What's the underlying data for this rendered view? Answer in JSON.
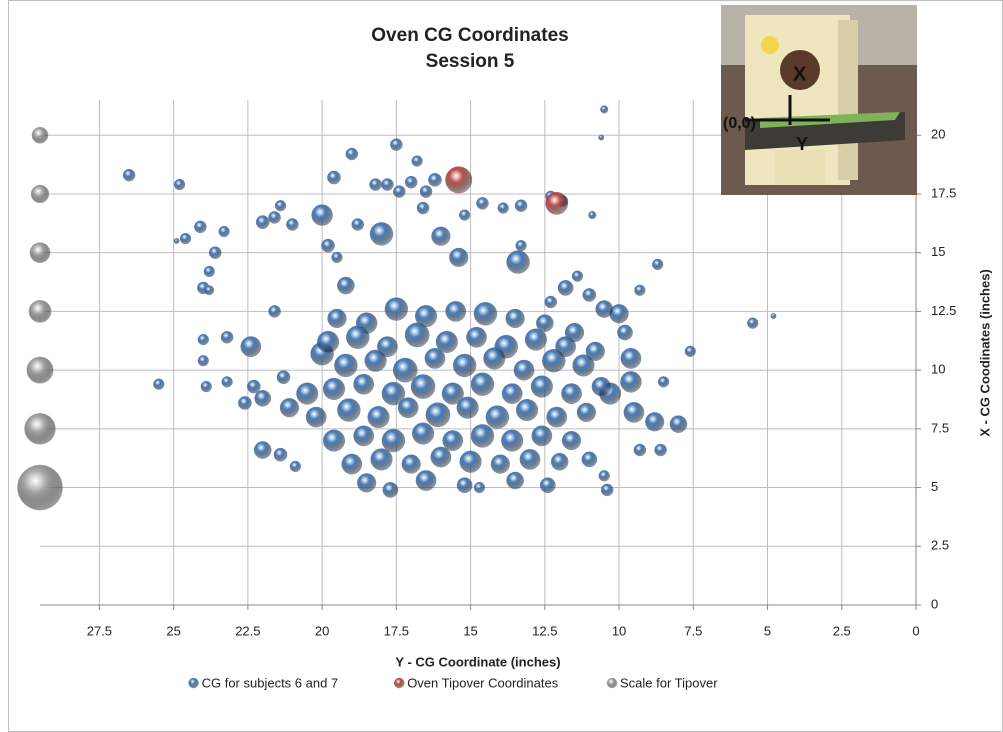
{
  "chart_data": {
    "type": "bubble",
    "title": "Oven CG Coordinates",
    "subtitle": "Session 5",
    "x_label": "Y - CG Coordinate (inches)",
    "y_label": "X - CG Coodinates (inches)",
    "xlim": [
      29.5,
      0
    ],
    "xticks": [
      27.5,
      25,
      22.5,
      20,
      17.5,
      15,
      12.5,
      10,
      7.5,
      5,
      2.5,
      0
    ],
    "ylim": [
      0,
      21.5
    ],
    "yticks": [
      0,
      2.5,
      5,
      7.5,
      10,
      12.5,
      15,
      17.5,
      20
    ],
    "grid": true,
    "legend": "bottom",
    "annotations": [
      "X",
      "(0,0)",
      "Y"
    ],
    "series": [
      {
        "name": "CG for subjects 6 and 7",
        "color": "#4a7ebb",
        "x": [
          26.5,
          24.8,
          24.6,
          24.9,
          24.1,
          23.3,
          23.6,
          23.8,
          24.0,
          23.8,
          22.0,
          21.6,
          21.0,
          21.4,
          20.0,
          19.8,
          19.5,
          19.0,
          19.6,
          18.8,
          17.5,
          16.8,
          16.2,
          16.5,
          18.2,
          17.8,
          17.4,
          17.0,
          16.6,
          15.2,
          14.6,
          13.9,
          13.3,
          12.3,
          11.9,
          10.9,
          10.5,
          10.6,
          18.0,
          16.0,
          13.3,
          13.4,
          15.4,
          19.2,
          21.6,
          24.0,
          24.0,
          23.2,
          22.4,
          25.5,
          23.9,
          23.2,
          22.3,
          21.3,
          22.6,
          22.0,
          21.1,
          22.0,
          21.4,
          20.9,
          8.7,
          9.3,
          11.4,
          11.0,
          11.8,
          12.3,
          5.5,
          4.8,
          7.6,
          8.5,
          9.3,
          8.6,
          10.4,
          10.5,
          8.0,
          8.8,
          9.5,
          10.0,
          10.5,
          9.8,
          9.6,
          9.6,
          10.3,
          20.0,
          20.5,
          19.5,
          18.5,
          17.5,
          16.5,
          15.5,
          14.5,
          13.5,
          12.5,
          11.5,
          19.8,
          18.8,
          17.8,
          16.8,
          15.8,
          14.8,
          13.8,
          12.8,
          11.8,
          10.8,
          19.2,
          18.2,
          17.2,
          16.2,
          15.2,
          14.2,
          13.2,
          12.2,
          11.2,
          19.6,
          18.6,
          17.6,
          16.6,
          15.6,
          14.6,
          13.6,
          12.6,
          11.6,
          10.6,
          20.2,
          19.1,
          18.1,
          17.1,
          16.1,
          15.1,
          14.1,
          13.1,
          12.1,
          11.1,
          19.6,
          18.6,
          17.6,
          16.6,
          15.6,
          14.6,
          13.6,
          12.6,
          11.6,
          19.0,
          18.0,
          17.0,
          16.0,
          15.0,
          14.0,
          13.0,
          12.0,
          11.0,
          18.5,
          17.7,
          16.5,
          15.2,
          14.7,
          13.5,
          12.4
        ],
        "values": [
          18.3,
          17.9,
          15.6,
          15.5,
          16.1,
          15.9,
          15.0,
          14.2,
          13.5,
          13.4,
          16.3,
          16.5,
          16.2,
          17.0,
          16.6,
          15.3,
          14.8,
          19.2,
          18.2,
          16.2,
          19.6,
          18.9,
          18.1,
          17.6,
          17.9,
          17.9,
          17.6,
          18.0,
          16.9,
          16.6,
          17.1,
          16.9,
          17.0,
          17.4,
          17.2,
          16.6,
          21.1,
          19.9,
          15.8,
          15.7,
          15.3,
          14.6,
          14.8,
          13.6,
          12.5,
          11.3,
          10.4,
          11.4,
          11.0,
          9.4,
          9.3,
          9.5,
          9.3,
          9.7,
          8.6,
          8.8,
          8.4,
          6.6,
          6.4,
          5.9,
          14.5,
          13.4,
          14.0,
          13.2,
          13.5,
          12.9,
          12.0,
          12.3,
          10.8,
          9.5,
          6.6,
          6.6,
          4.9,
          5.5,
          7.7,
          7.8,
          8.2,
          12.4,
          12.6,
          11.6,
          10.5,
          9.5,
          9.0,
          10.7,
          9.0,
          12.2,
          12.0,
          12.6,
          12.3,
          12.5,
          12.4,
          12.2,
          12.0,
          11.6,
          11.2,
          11.4,
          11.0,
          11.5,
          11.2,
          11.4,
          11.0,
          11.3,
          11.0,
          10.8,
          10.2,
          10.4,
          10.0,
          10.5,
          10.2,
          10.5,
          10.0,
          10.4,
          10.2,
          9.2,
          9.4,
          9.0,
          9.3,
          9.0,
          9.4,
          9.0,
          9.3,
          9.0,
          9.3,
          8.0,
          8.3,
          8.0,
          8.4,
          8.1,
          8.4,
          8.0,
          8.3,
          8.0,
          8.2,
          7.0,
          7.2,
          7.0,
          7.3,
          7.0,
          7.2,
          7.0,
          7.2,
          7.0,
          6.0,
          6.2,
          6.0,
          6.3,
          6.1,
          6.0,
          6.2,
          6.1,
          6.2,
          5.2,
          4.9,
          5.3,
          5.1,
          5.0,
          5.3,
          5.1
        ],
        "sizes": [
          5,
          4,
          4,
          1,
          5,
          4,
          5,
          4,
          5,
          3,
          6,
          5,
          5,
          4,
          15,
          6,
          4,
          5,
          6,
          5,
          5,
          4,
          6,
          5,
          5,
          5,
          5,
          5,
          5,
          4,
          5,
          4,
          5,
          4,
          4,
          2,
          2,
          1,
          18,
          12,
          4,
          18,
          12,
          10,
          5,
          4,
          4,
          5,
          14,
          4,
          4,
          4,
          6,
          6,
          6,
          9,
          12,
          10,
          6,
          4,
          4,
          4,
          4,
          6,
          8,
          5,
          4,
          1,
          4,
          4,
          5,
          5,
          5,
          4,
          10,
          12,
          14,
          12,
          10,
          8,
          14,
          15,
          16,
          18,
          16,
          12,
          15,
          18,
          16,
          14,
          18,
          12,
          10,
          12,
          16,
          18,
          14,
          20,
          16,
          14,
          18,
          16,
          14,
          12,
          18,
          16,
          20,
          14,
          18,
          16,
          14,
          18,
          16,
          16,
          14,
          18,
          20,
          16,
          18,
          14,
          16,
          14,
          12,
          14,
          18,
          16,
          14,
          20,
          16,
          18,
          16,
          14,
          12,
          16,
          14,
          18,
          16,
          14,
          18,
          16,
          14,
          12,
          14,
          16,
          12,
          14,
          16,
          12,
          14,
          10,
          8,
          12,
          8,
          14,
          8,
          4,
          10,
          8
        ]
      },
      {
        "name": "Oven Tipover Coordinates",
        "color": "#c0504d",
        "x": [
          15.4,
          12.1
        ],
        "values": [
          18.1,
          17.1
        ],
        "sizes": [
          24,
          17
        ]
      },
      {
        "name": "Scale for Tipover",
        "color": "#a6a6a6",
        "x": [
          29.5,
          29.5,
          29.5,
          29.5,
          29.5,
          29.5,
          29.5
        ],
        "values": [
          20,
          17.5,
          15,
          12.5,
          10,
          7.5,
          5
        ],
        "sizes": [
          9,
          11,
          14,
          17,
          24,
          33,
          70
        ]
      }
    ]
  }
}
